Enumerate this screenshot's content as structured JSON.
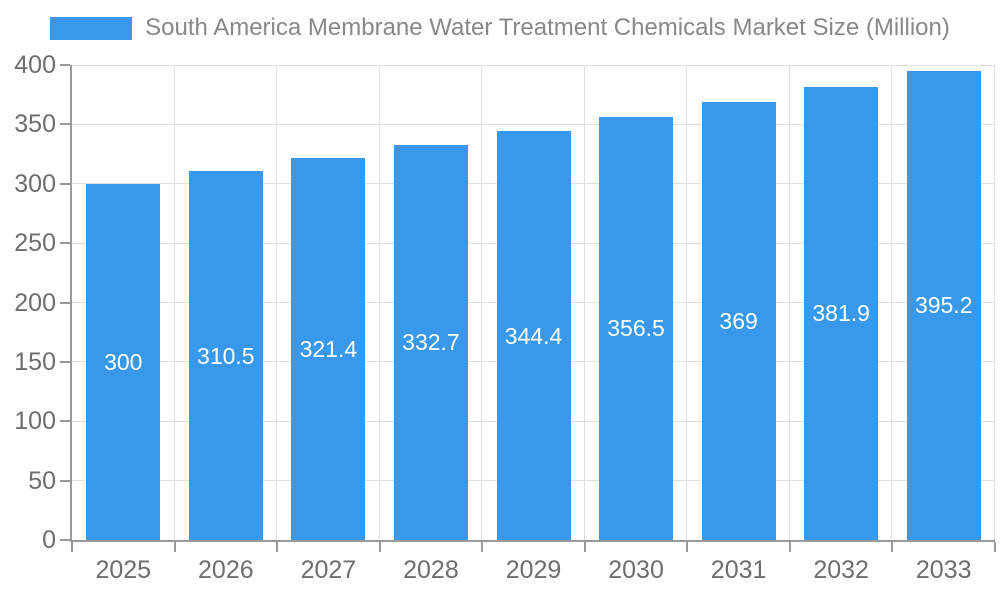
{
  "legend": {
    "label": "South America Membrane Water Treatment Chemicals Market Size (Million)"
  },
  "chart_data": {
    "type": "bar",
    "title": "South America Membrane Water Treatment Chemicals Market Size (Million)",
    "categories": [
      "2025",
      "2026",
      "2027",
      "2028",
      "2029",
      "2030",
      "2031",
      "2032",
      "2033"
    ],
    "values": [
      300,
      310.5,
      321.4,
      332.7,
      344.4,
      356.5,
      369,
      381.9,
      395.2
    ],
    "value_labels": [
      "300",
      "310.5",
      "321.4",
      "332.7",
      "344.4",
      "356.5",
      "369",
      "381.9",
      "395.2"
    ],
    "xlabel": "",
    "ylabel": "",
    "ylim": [
      0,
      400
    ],
    "ytick_step": 50,
    "ytick_labels": [
      "0",
      "50",
      "100",
      "150",
      "200",
      "250",
      "300",
      "350",
      "400"
    ],
    "grid": true,
    "legend_position": "top-center",
    "colors": {
      "bar": "#3899ec",
      "bar_label_text": "#ffffff",
      "axis_line": "#999999",
      "gridline": "#e0e0e0",
      "tick_text": "#6e6e6e",
      "title_text": "#888888"
    }
  }
}
